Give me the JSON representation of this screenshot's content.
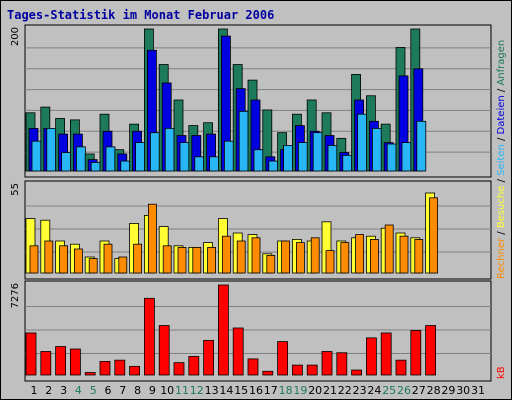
{
  "title": "Tages-Statistik im Monat Februar 2006",
  "colors": {
    "background": "#c0c0c0",
    "title": "#0000a0",
    "anfragen": "#1d7a5a",
    "dateien": "#0000e0",
    "seiten": "#29b6f6",
    "rechner": "#ff8c00",
    "besuche": "#ffff33",
    "kb": "#ff0000",
    "weekend": "#1d7a5a",
    "weekday": "#000000"
  },
  "chart_data": [
    {
      "type": "bar",
      "panel": "top",
      "y_max_label": "200",
      "ylim": [
        0,
        200
      ],
      "categories": [
        "1",
        "2",
        "3",
        "4",
        "5",
        "6",
        "7",
        "8",
        "9",
        "10",
        "11",
        "12",
        "13",
        "14",
        "15",
        "16",
        "17",
        "18",
        "19",
        "20",
        "21",
        "22",
        "23",
        "24",
        "25",
        "26",
        "27",
        "28",
        "29",
        "30",
        "31"
      ],
      "weekend_days": [
        "4",
        "5",
        "11",
        "12",
        "18",
        "19",
        "25",
        "26"
      ],
      "series": [
        {
          "name": "Anfragen",
          "values": [
            82,
            90,
            74,
            72,
            24,
            80,
            30,
            66,
            200,
            150,
            100,
            64,
            68,
            200,
            150,
            128,
            86,
            54,
            80,
            100,
            82,
            46,
            136,
            106,
            66,
            174,
            200,
            0,
            0,
            0,
            0
          ]
        },
        {
          "name": "Dateien",
          "values": [
            60,
            60,
            52,
            52,
            16,
            56,
            24,
            56,
            170,
            124,
            50,
            50,
            52,
            190,
            116,
            100,
            20,
            30,
            64,
            56,
            50,
            26,
            100,
            70,
            40,
            134,
            144,
            0,
            0,
            0,
            0
          ]
        },
        {
          "name": "Seiten",
          "values": [
            42,
            60,
            26,
            34,
            12,
            34,
            14,
            40,
            54,
            60,
            40,
            20,
            20,
            42,
            84,
            30,
            14,
            36,
            40,
            54,
            36,
            22,
            80,
            60,
            38,
            40,
            70,
            0,
            0,
            0,
            0
          ]
        }
      ],
      "legend": [
        "Anfragen",
        "Dateien",
        "Seiten"
      ]
    },
    {
      "type": "bar",
      "panel": "middle",
      "y_max_label": "55",
      "ylim": [
        0,
        55
      ],
      "categories": [
        "1",
        "2",
        "3",
        "4",
        "5",
        "6",
        "7",
        "8",
        "9",
        "10",
        "11",
        "12",
        "13",
        "14",
        "15",
        "16",
        "17",
        "18",
        "19",
        "20",
        "21",
        "22",
        "23",
        "24",
        "25",
        "26",
        "27",
        "28",
        "29",
        "30",
        "31"
      ],
      "series": [
        {
          "name": "Besuche",
          "values": [
            34,
            33,
            20,
            18,
            10,
            20,
            9,
            31,
            36,
            29,
            17,
            16,
            19,
            34,
            25,
            24,
            12,
            20,
            21,
            20,
            32,
            20,
            22,
            23,
            28,
            25,
            22,
            50,
            0,
            0,
            0
          ]
        },
        {
          "name": "Rechner",
          "values": [
            17,
            20,
            17,
            15,
            9,
            18,
            10,
            18,
            43,
            17,
            16,
            16,
            16,
            23,
            20,
            22,
            11,
            20,
            19,
            22,
            14,
            19,
            24,
            21,
            30,
            23,
            21,
            47,
            0,
            0,
            0
          ]
        }
      ],
      "legend": [
        "Rechner",
        "Besuche"
      ]
    },
    {
      "type": "bar",
      "panel": "bottom",
      "y_max_label": "7276",
      "ylim": [
        0,
        7276
      ],
      "categories": [
        "1",
        "2",
        "3",
        "4",
        "5",
        "6",
        "7",
        "8",
        "9",
        "10",
        "11",
        "12",
        "13",
        "14",
        "15",
        "16",
        "17",
        "18",
        "19",
        "20",
        "21",
        "22",
        "23",
        "24",
        "25",
        "26",
        "27",
        "28",
        "29",
        "30",
        "31"
      ],
      "series": [
        {
          "name": "kB",
          "values": [
            3400,
            1900,
            2300,
            2100,
            200,
            1100,
            1200,
            700,
            6200,
            4000,
            1000,
            1500,
            2800,
            7276,
            3800,
            1300,
            300,
            2700,
            800,
            800,
            1900,
            1800,
            400,
            3000,
            3400,
            1200,
            3600,
            4000,
            0,
            0,
            0
          ]
        }
      ],
      "legend": [
        "kB"
      ]
    }
  ]
}
